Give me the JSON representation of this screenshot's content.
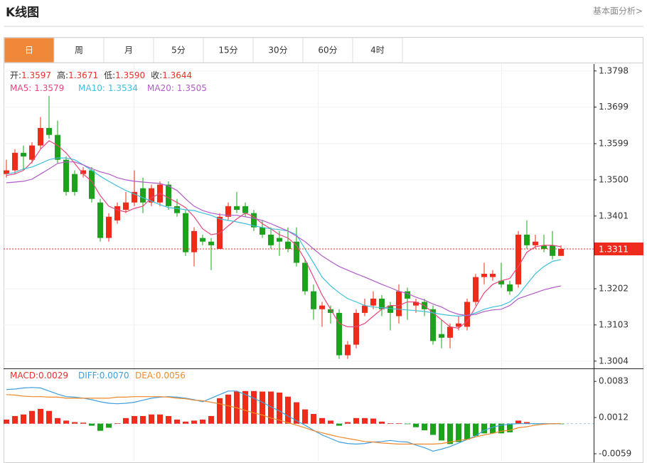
{
  "header": {
    "title": "K线图",
    "link": "基本面分析>"
  },
  "tabs": [
    "日",
    "周",
    "月",
    "5分",
    "15分",
    "30分",
    "60分",
    "4时"
  ],
  "active_tab": 0,
  "chart_data": [
    {
      "type": "candlestick",
      "categories": [
        null,
        null,
        null,
        null,
        null,
        null,
        null,
        null,
        null,
        null,
        null,
        null,
        null,
        null,
        null,
        null,
        null,
        null,
        null,
        null,
        null,
        null,
        null,
        null,
        null,
        null,
        null,
        null,
        null,
        null,
        null,
        null,
        null,
        null,
        null,
        null,
        null,
        null,
        null,
        null,
        null,
        null,
        null,
        null,
        null,
        null,
        null,
        null,
        null,
        null,
        null,
        null,
        null,
        null,
        null,
        null,
        null,
        null,
        null,
        null,
        null,
        null,
        null,
        null,
        null,
        null
      ],
      "open": [
        1.3516,
        1.3526,
        1.3574,
        1.3555,
        1.3594,
        1.3642,
        1.3623,
        1.3555,
        1.3516,
        1.3516,
        1.3526,
        1.3438,
        1.3341,
        1.3389,
        1.3418,
        1.3438,
        1.3477,
        1.3438,
        1.3438,
        1.3487,
        1.3428,
        1.3409,
        1.3302,
        1.3341,
        1.3331,
        1.3311,
        1.3399,
        1.3428,
        1.3428,
        1.3409,
        1.337,
        1.335,
        1.3341,
        1.3331,
        1.3331,
        1.3273,
        1.3195,
        1.3146,
        1.3146,
        1.3136,
        1.302,
        1.3049,
        1.3136,
        1.3156,
        1.3175,
        1.3156,
        1.3127,
        1.3195,
        1.3156,
        1.3166,
        1.3146,
        1.3078,
        1.3068,
        1.3098,
        1.3098,
        1.3166,
        1.3234,
        1.3234,
        1.3224,
        1.3214,
        1.3214,
        1.335,
        1.3321,
        1.3321,
        1.3321,
        1.3292
      ],
      "high": [
        1.3555,
        1.3584,
        1.3594,
        1.3603,
        1.3672,
        1.373,
        1.3662,
        1.3564,
        1.3526,
        1.3535,
        1.3535,
        1.3448,
        1.3409,
        1.3438,
        1.3467,
        1.3526,
        1.3506,
        1.3487,
        1.3496,
        1.3496,
        1.3448,
        1.3418,
        1.337,
        1.335,
        1.3341,
        1.3409,
        1.3438,
        1.3467,
        1.3438,
        1.3418,
        1.3389,
        1.337,
        1.336,
        1.337,
        1.337,
        1.3282,
        1.3214,
        1.3166,
        1.3156,
        1.3146,
        1.3059,
        1.3146,
        1.3175,
        1.3195,
        1.3185,
        1.3166,
        1.3214,
        1.3205,
        1.3175,
        1.3175,
        1.3156,
        1.3117,
        1.3107,
        1.3127,
        1.3175,
        1.3243,
        1.3273,
        1.3253,
        1.3273,
        1.3224,
        1.336,
        1.3389,
        1.335,
        1.335,
        1.336,
        1.3321
      ],
      "low": [
        1.3506,
        1.3516,
        1.3526,
        1.3545,
        1.3584,
        1.3613,
        1.3545,
        1.3457,
        1.3457,
        1.3506,
        1.3438,
        1.3331,
        1.3331,
        1.338,
        1.3409,
        1.3428,
        1.3409,
        1.3428,
        1.3428,
        1.3418,
        1.3399,
        1.3292,
        1.3263,
        1.3321,
        1.3253,
        1.3311,
        1.3389,
        1.3409,
        1.3399,
        1.336,
        1.3341,
        1.3311,
        1.3292,
        1.3302,
        1.3263,
        1.3185,
        1.3117,
        1.3098,
        1.3107,
        1.301,
        1.301,
        1.3039,
        1.3127,
        1.3146,
        1.3127,
        1.3088,
        1.3107,
        1.3117,
        1.3136,
        1.3127,
        1.3049,
        1.3039,
        1.3039,
        1.3088,
        1.3088,
        1.3156,
        1.3214,
        1.3224,
        1.3205,
        1.3185,
        1.3205,
        1.3311,
        1.3311,
        1.3302,
        1.3282,
        1.3292
      ],
      "close": [
        1.3526,
        1.3574,
        1.3564,
        1.3594,
        1.3642,
        1.3623,
        1.3555,
        1.3467,
        1.3467,
        1.3526,
        1.3448,
        1.3341,
        1.3399,
        1.3428,
        1.3438,
        1.3467,
        1.3438,
        1.3477,
        1.3487,
        1.3428,
        1.3409,
        1.3302,
        1.336,
        1.3331,
        1.3321,
        1.3399,
        1.3428,
        1.3418,
        1.3409,
        1.337,
        1.335,
        1.3321,
        1.3331,
        1.3311,
        1.3273,
        1.3195,
        1.3146,
        1.3156,
        1.3136,
        1.302,
        1.3049,
        1.3136,
        1.3156,
        1.3175,
        1.3146,
        1.3136,
        1.3195,
        1.3175,
        1.3166,
        1.3146,
        1.3059,
        1.3068,
        1.3098,
        1.3107,
        1.3166,
        1.3234,
        1.3243,
        1.3243,
        1.3214,
        1.3195,
        1.335,
        1.3321,
        1.3331,
        1.3311,
        1.3292,
        1.3311
      ],
      "up_color": "#ee2b1c",
      "down_color": "#1ea21e",
      "info": [
        {
          "label": "开:",
          "value": "1.3597"
        },
        {
          "label": "高:",
          "value": "1.3671"
        },
        {
          "label": "低:",
          "value": "1.3590"
        },
        {
          "label": "收:",
          "value": "1.3644"
        }
      ],
      "series": [
        {
          "name": "MA5:",
          "current": "1.3579",
          "color": "#e8467c",
          "values": [
            1.3512,
            1.3516,
            1.3526,
            1.3549,
            1.3584,
            1.3607,
            1.3594,
            1.3574,
            1.3545,
            1.3516,
            1.3496,
            1.3457,
            1.3428,
            1.3418,
            1.3412,
            1.3422,
            1.3428,
            1.3451,
            1.3463,
            1.3451,
            1.3438,
            1.3424,
            1.3399,
            1.3366,
            1.335,
            1.3354,
            1.3374,
            1.3393,
            1.3409,
            1.3399,
            1.338,
            1.3366,
            1.335,
            1.3341,
            1.3321,
            1.3282,
            1.3234,
            1.3185,
            1.3146,
            1.3107,
            1.3098,
            1.3098,
            1.3107,
            1.3127,
            1.3146,
            1.3156,
            1.3156,
            1.3166,
            1.3166,
            1.3156,
            1.3136,
            1.3117,
            1.3098,
            1.3094,
            1.3113,
            1.3152,
            1.3191,
            1.3214,
            1.3224,
            1.323,
            1.3263,
            1.3302,
            1.3317,
            1.3321,
            1.3321,
            1.3317
          ]
        },
        {
          "name": "MA10:",
          "current": "1.3534",
          "color": "#3fbfdb",
          "values": [
            1.3516,
            1.352,
            1.353,
            1.3535,
            1.3545,
            1.3555,
            1.356,
            1.356,
            1.3555,
            1.3541,
            1.3526,
            1.351,
            1.3496,
            1.3483,
            1.3471,
            1.3461,
            1.3451,
            1.3442,
            1.3432,
            1.3424,
            1.3422,
            1.3418,
            1.3416,
            1.3409,
            1.3403,
            1.3393,
            1.3389,
            1.3385,
            1.338,
            1.3374,
            1.337,
            1.3366,
            1.3364,
            1.336,
            1.335,
            1.3311,
            1.3273,
            1.3234,
            1.321,
            1.3191,
            1.3175,
            1.3166,
            1.3156,
            1.3152,
            1.315,
            1.3148,
            1.3146,
            1.3144,
            1.3142,
            1.314,
            1.3136,
            1.3132,
            1.3129,
            1.3127,
            1.3129,
            1.3136,
            1.3146,
            1.3152,
            1.3156,
            1.3166,
            1.3185,
            1.3214,
            1.3243,
            1.3263,
            1.3277,
            1.3282
          ]
        },
        {
          "name": "MA20:",
          "current": "1.3505",
          "color": "#b25bc9",
          "values": [
            1.3492,
            1.3494,
            1.3496,
            1.3502,
            1.3516,
            1.353,
            1.3545,
            1.3549,
            1.3549,
            1.3541,
            1.3531,
            1.3522,
            1.3516,
            1.3506,
            1.35,
            1.3496,
            1.3494,
            1.3492,
            1.349,
            1.3483,
            1.3471,
            1.3448,
            1.3428,
            1.3416,
            1.3409,
            1.3405,
            1.3403,
            1.3403,
            1.3399,
            1.3395,
            1.3389,
            1.338,
            1.337,
            1.336,
            1.3346,
            1.3331,
            1.3311,
            1.3292,
            1.3277,
            1.3263,
            1.3253,
            1.3243,
            1.3234,
            1.3224,
            1.3214,
            1.3205,
            1.3195,
            1.3189,
            1.3179,
            1.3171,
            1.316,
            1.3152,
            1.314,
            1.3132,
            1.3129,
            1.3132,
            1.314,
            1.3144,
            1.3146,
            1.3156,
            1.3175,
            1.3183,
            1.3191,
            1.3199,
            1.3205,
            1.321
          ]
        }
      ],
      "last_price": 1.3311,
      "last_price_color": "#ee2b1c",
      "ylim": [
        1.2986,
        1.3817
      ],
      "yticks": [
        1.3798,
        1.3699,
        1.3599,
        {
          "value": 1.35,
          "label": "1.3500"
        },
        1.3401,
        1.3202,
        1.3103,
        1.3004
      ],
      "grid": true
    },
    {
      "type": "macd",
      "categories": [
        null,
        null,
        null,
        null,
        null,
        null,
        null,
        null,
        null,
        null,
        null,
        null,
        null,
        null,
        null,
        null,
        null,
        null,
        null,
        null,
        null,
        null,
        null,
        null,
        null,
        null,
        null,
        null,
        null,
        null,
        null,
        null,
        null,
        null,
        null,
        null,
        null,
        null,
        null,
        null,
        null,
        null,
        null,
        null,
        null,
        null,
        null,
        null,
        null,
        null,
        null,
        null,
        null,
        null,
        null,
        null,
        null,
        null,
        null,
        null,
        null,
        null,
        null,
        null,
        null,
        null
      ],
      "series": [
        {
          "name": "MACD:",
          "current": "0.0029",
          "type": "bar",
          "color": "#e8322a",
          "up_color": "#ee2b1c",
          "down_color": "#1ea21e",
          "values": [
            0.0008,
            0.0015,
            0.0018,
            0.0025,
            0.0029,
            0.0025,
            0.0011,
            0.0006,
            0.0003,
            0.0002,
            -0.0004,
            -0.0014,
            -0.0008,
            0.0001,
            0.0011,
            0.0015,
            0.0015,
            0.0018,
            0.0018,
            0.0015,
            0.0008,
            0.0004,
            0.0006,
            0.0008,
            0.0015,
            0.005,
            0.0057,
            0.0063,
            0.0064,
            0.0064,
            0.0063,
            0.0063,
            0.0061,
            0.0053,
            0.0042,
            0.0028,
            0.0019,
            0.0011,
            0.0006,
            -0.0004,
            0.0003,
            0.0011,
            0.0011,
            0.001,
            0.0004,
            0.0001,
            0.0001,
            -0.0001,
            -0.0007,
            -0.0013,
            -0.0022,
            -0.0033,
            -0.004,
            -0.0036,
            -0.0031,
            -0.0024,
            -0.0019,
            -0.0019,
            -0.0019,
            -0.0017,
            0.0006,
            0.0003,
            -0.0001,
            -0.0001,
            -0.0001,
            -0.0001
          ]
        },
        {
          "name": "DIFF:",
          "current": "0.0070",
          "type": "line",
          "color": "#3d9fe0",
          "values": [
            0.0067,
            0.0068,
            0.007,
            0.0071,
            0.007,
            0.0064,
            0.0058,
            0.0053,
            0.0052,
            0.005,
            0.0047,
            0.0043,
            0.004,
            0.0039,
            0.004,
            0.0042,
            0.0046,
            0.005,
            0.0052,
            0.0053,
            0.0052,
            0.005,
            0.0047,
            0.0043,
            0.005,
            0.0057,
            0.0064,
            0.0064,
            0.0057,
            0.005,
            0.0042,
            0.0033,
            0.0025,
            0.0015,
            0.0006,
            -0.0003,
            -0.0013,
            -0.0022,
            -0.0029,
            -0.0036,
            -0.0039,
            -0.004,
            -0.0039,
            -0.0036,
            -0.0035,
            -0.0033,
            -0.0035,
            -0.0036,
            -0.0042,
            -0.0047,
            -0.0054,
            -0.005,
            -0.0045,
            -0.0038,
            -0.0031,
            -0.0024,
            -0.0013,
            -0.0007,
            -0.0003,
            -0.0001,
            0,
            0,
            0,
            0,
            0,
            0
          ]
        },
        {
          "name": "DEA:",
          "current": "0.0056",
          "type": "line",
          "color": "#f08a2c",
          "values": [
            0.0057,
            0.0056,
            0.0054,
            0.0053,
            0.0053,
            0.0052,
            0.0052,
            0.005,
            0.005,
            0.005,
            0.005,
            0.005,
            0.005,
            0.0052,
            0.0052,
            0.0053,
            0.0053,
            0.0053,
            0.0053,
            0.0052,
            0.005,
            0.0049,
            0.0046,
            0.0045,
            0.0042,
            0.0039,
            0.0035,
            0.0031,
            0.0026,
            0.0021,
            0.0017,
            0.0011,
            0.0007,
            0.0002,
            -0.0003,
            -0.0008,
            -0.0014,
            -0.0018,
            -0.0022,
            -0.0026,
            -0.0029,
            -0.0032,
            -0.0035,
            -0.0036,
            -0.0038,
            -0.0039,
            -0.004,
            -0.004,
            -0.004,
            -0.004,
            -0.004,
            -0.0039,
            -0.0036,
            -0.0033,
            -0.0031,
            -0.0026,
            -0.0022,
            -0.0019,
            -0.0015,
            -0.0013,
            -0.0008,
            -0.0006,
            -0.0003,
            -0.0001,
            0,
            0
          ]
        }
      ],
      "ylim": [
        -0.0073,
        0.0107
      ],
      "yticks": [
        0.0083,
        0.0012,
        -0.0059
      ],
      "grid": false
    }
  ]
}
